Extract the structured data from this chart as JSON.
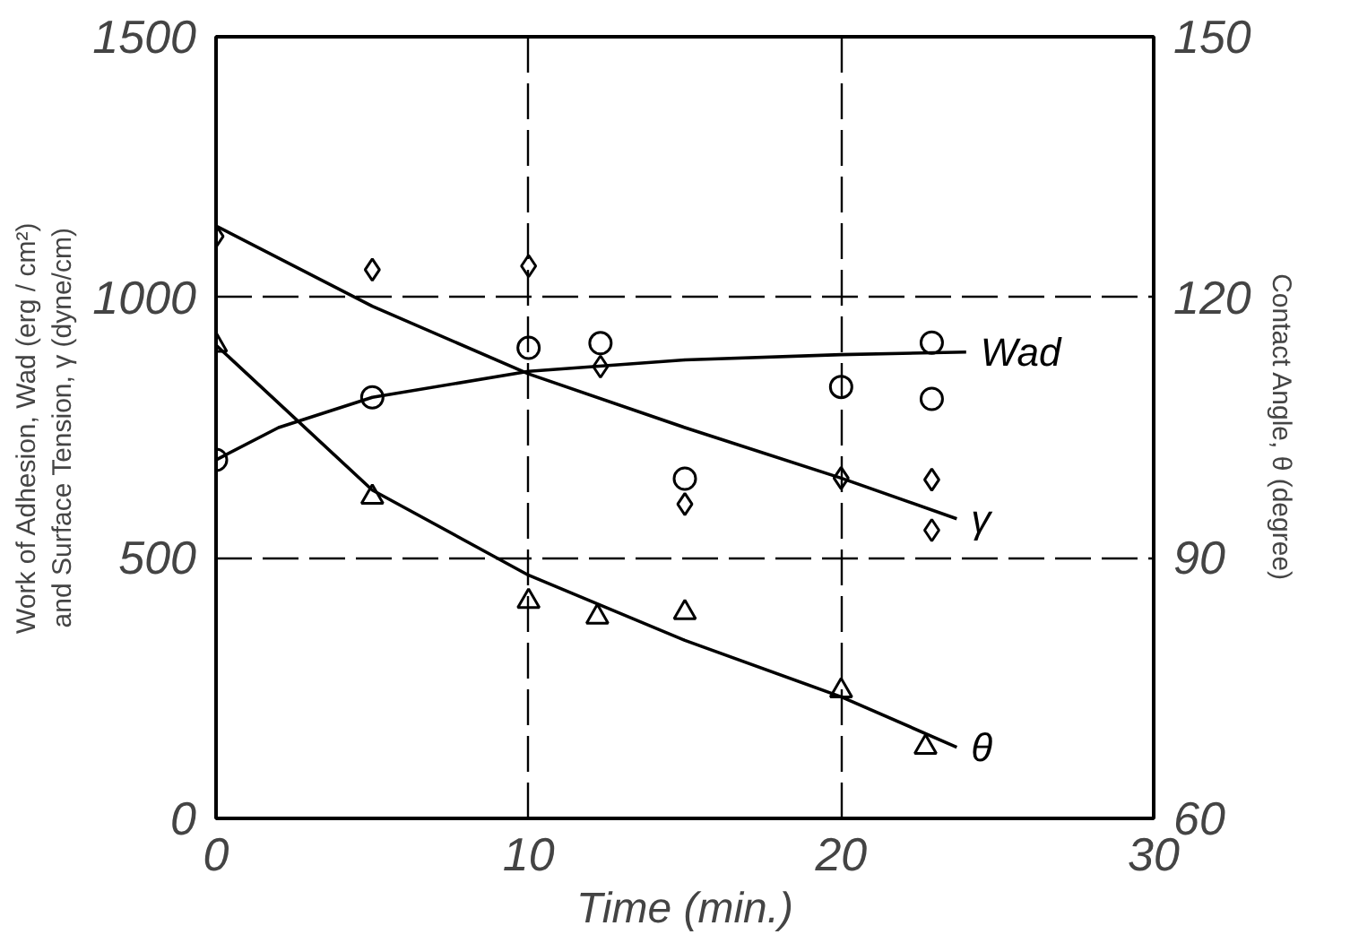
{
  "chart_data": {
    "type": "scatter",
    "xlabel": "Time (min.)",
    "ylabel": "Work of Adhesion, Wad (erg / cm²)\nand Surface Tension, γ (dyne/cm)",
    "y2label": "Contact Angle, θ (degree)",
    "xlim": [
      0,
      30
    ],
    "xticks": [
      0,
      10,
      20,
      30
    ],
    "ylim": [
      0,
      1500
    ],
    "yticks": [
      0,
      500,
      1000,
      1500
    ],
    "y2lim": [
      60,
      150
    ],
    "y2ticks": [
      60,
      90,
      120,
      150
    ],
    "grid": true,
    "series": [
      {
        "marker": "circle",
        "color": "#000000",
        "x": [
          0,
          5,
          10,
          12.3,
          15,
          20,
          22.9,
          22.9
        ],
        "values": [
          688,
          808,
          903,
          912,
          652,
          828,
          913,
          805
        ]
      },
      {
        "marker": "diamond",
        "color": "#000000",
        "x": [
          0,
          5,
          10,
          12.3,
          15,
          20,
          22.9,
          22.9
        ],
        "values": [
          1117,
          1053,
          1060,
          867,
          603,
          653,
          650,
          553
        ]
      },
      {
        "marker": "triangle",
        "color": "#000000",
        "axis": "y2",
        "x": [
          0,
          5,
          10,
          12.2,
          15,
          20,
          22.7
        ],
        "values": [
          114.5,
          97,
          85,
          83.2,
          83.7,
          74.7,
          68.2
        ]
      },
      {
        "type": "line",
        "name": "Wad",
        "color": "#000000",
        "x": [
          0,
          2,
          5,
          10,
          15,
          20,
          24
        ],
        "values": [
          688,
          750,
          808,
          858,
          880,
          890,
          895
        ]
      },
      {
        "type": "line",
        "name": "γ",
        "color": "#000000",
        "x": [
          0,
          5,
          10,
          15,
          20,
          23.7
        ],
        "values": [
          1137,
          983,
          853,
          750,
          653,
          575
        ]
      },
      {
        "type": "line",
        "name": "θ",
        "color": "#000000",
        "axis": "y2",
        "x": [
          0,
          5,
          10,
          15,
          20,
          23.7
        ],
        "values": [
          114.5,
          97.8,
          88,
          80.5,
          74,
          68.2
        ]
      }
    ]
  }
}
